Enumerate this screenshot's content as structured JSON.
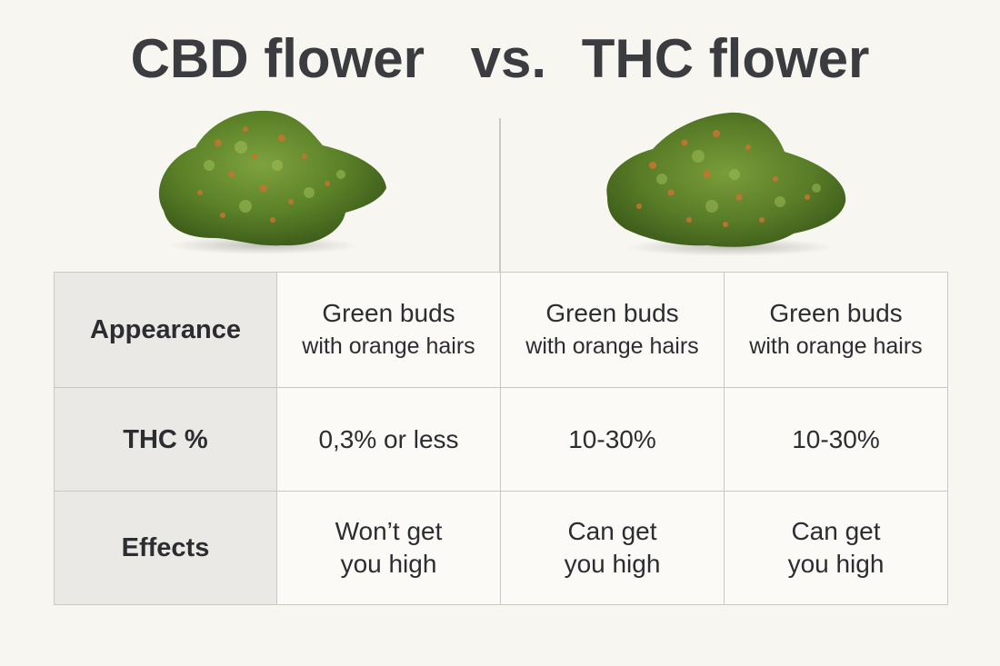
{
  "title": {
    "left": "CBD flower",
    "vs": "vs.",
    "right": "THC flower"
  },
  "colors": {
    "background": "#f8f6f1",
    "label_cell": "#ebe9e6",
    "border": "#c8c8c8",
    "text": "#2b2d30",
    "bud_green": "#5f8a2c",
    "bud_orange": "#c7742e"
  },
  "images": {
    "left": "cbd-bud-image",
    "right": "thc-bud-image"
  },
  "rows": [
    {
      "label": "Appearance",
      "cells": [
        [
          "Green buds",
          "with orange hairs"
        ],
        [
          "Green buds",
          "with orange hairs"
        ],
        [
          "Green buds",
          "with orange hairs"
        ]
      ]
    },
    {
      "label": "THC %",
      "cells": [
        [
          "0,3% or less"
        ],
        [
          "10-30%"
        ],
        [
          "10-30%"
        ]
      ]
    },
    {
      "label": "Effects",
      "cells": [
        [
          "Won’t get",
          "you high"
        ],
        [
          "Can get",
          "you high"
        ],
        [
          "Can get",
          "you high"
        ]
      ]
    }
  ]
}
